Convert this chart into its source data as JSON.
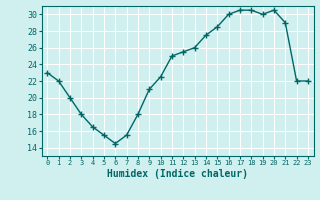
{
  "x": [
    0,
    1,
    2,
    3,
    4,
    5,
    6,
    7,
    8,
    9,
    10,
    11,
    12,
    13,
    14,
    15,
    16,
    17,
    18,
    19,
    20,
    21,
    22,
    23
  ],
  "y": [
    23,
    22,
    20,
    18,
    16.5,
    15.5,
    14.5,
    15.5,
    18,
    21,
    22.5,
    25,
    25.5,
    26,
    27.5,
    28.5,
    30,
    30.5,
    30.5,
    30,
    30.5,
    29,
    22,
    22
  ],
  "line_color": "#006666",
  "bg_color": "#d0efef",
  "grid_color": "#ffffff",
  "xlabel": "Humidex (Indice chaleur)",
  "ylim": [
    13,
    31
  ],
  "yticks": [
    14,
    16,
    18,
    20,
    22,
    24,
    26,
    28,
    30
  ],
  "xlim": [
    -0.5,
    23.5
  ],
  "xticks": [
    0,
    1,
    2,
    3,
    4,
    5,
    6,
    7,
    8,
    9,
    10,
    11,
    12,
    13,
    14,
    15,
    16,
    17,
    18,
    19,
    20,
    21,
    22,
    23
  ]
}
